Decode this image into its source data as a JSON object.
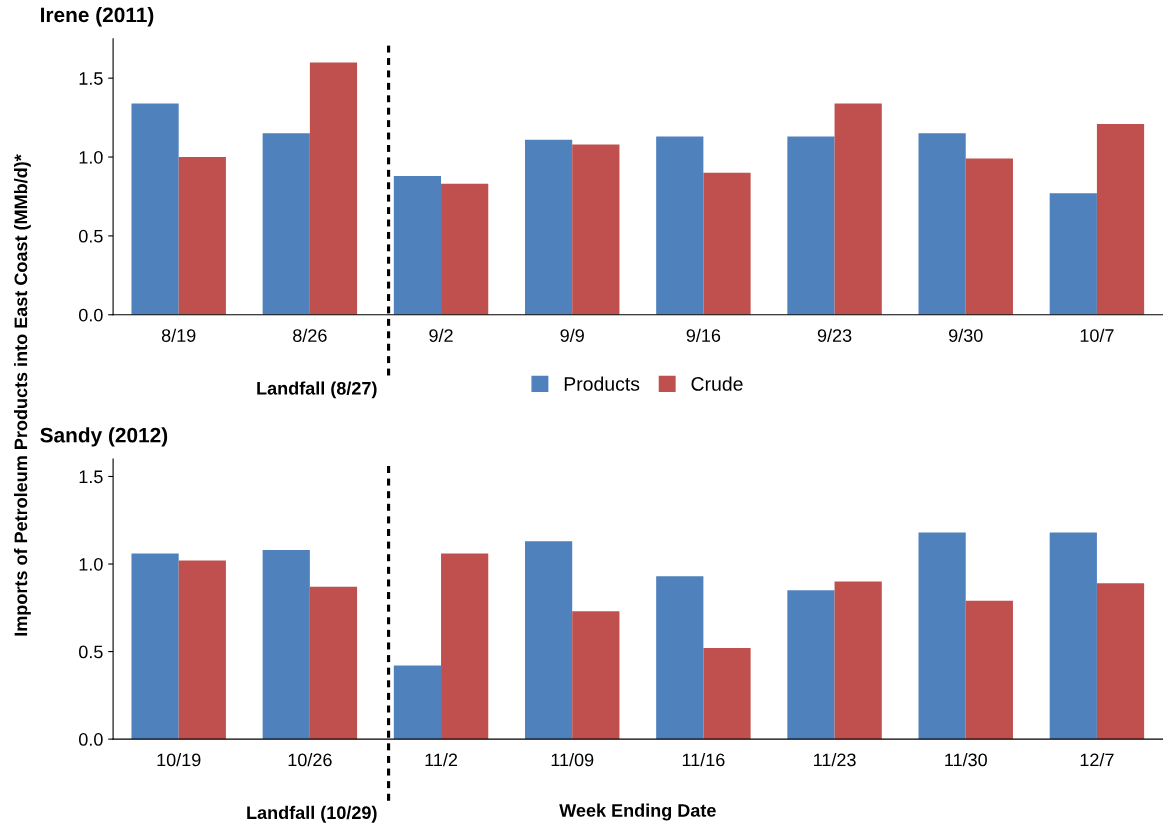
{
  "chart_data": [
    {
      "type": "bar",
      "title": "Irene (2011)",
      "ylabel": "Imports of Petroleum Products into East Coast (MMb/d)*",
      "categories": [
        "8/19",
        "8/26",
        "9/2",
        "9/9",
        "9/16",
        "9/23",
        "9/30",
        "10/7"
      ],
      "series": [
        {
          "name": "Products",
          "color": "#4f81bd",
          "values": [
            1.34,
            1.15,
            0.88,
            1.11,
            1.13,
            1.13,
            1.15,
            0.77
          ]
        },
        {
          "name": "Crude",
          "color": "#c0504d",
          "values": [
            1.0,
            1.6,
            0.83,
            1.08,
            0.9,
            1.34,
            0.99,
            1.21
          ]
        }
      ],
      "ylim": [
        0,
        1.75
      ],
      "yticks": [
        {
          "value": 0,
          "label": "0.0"
        },
        {
          "value": 0.5,
          "label": "0.5"
        },
        {
          "value": 1,
          "label": "1.0"
        },
        {
          "value": 1.5,
          "label": "1.5"
        }
      ],
      "annotations": [
        "Landfall (8/27)"
      ],
      "legend": "bottom",
      "grid": false
    },
    {
      "type": "bar",
      "title": "Sandy (2012)",
      "xlabel": "Week Ending Date",
      "categories": [
        "10/19",
        "10/26",
        "11/2",
        "11/09",
        "11/16",
        "11/23",
        "11/30",
        "12/7"
      ],
      "series": [
        {
          "color": "#4f81bd",
          "values": [
            1.06,
            1.08,
            0.42,
            1.13,
            0.93,
            0.85,
            1.18,
            1.18
          ]
        },
        {
          "color": "#c0504d",
          "values": [
            1.02,
            0.87,
            1.06,
            0.73,
            0.52,
            0.9,
            0.79,
            0.89
          ]
        }
      ],
      "ylim": [
        0,
        1.6
      ],
      "yticks": [
        {
          "value": 0,
          "label": "0.0"
        },
        {
          "value": 0.5,
          "label": "0.5"
        },
        {
          "value": 1,
          "label": "1.0"
        },
        {
          "value": 1.5,
          "label": "1.5"
        }
      ],
      "annotations": [
        "Landfall (10/29)"
      ],
      "grid": false
    }
  ]
}
